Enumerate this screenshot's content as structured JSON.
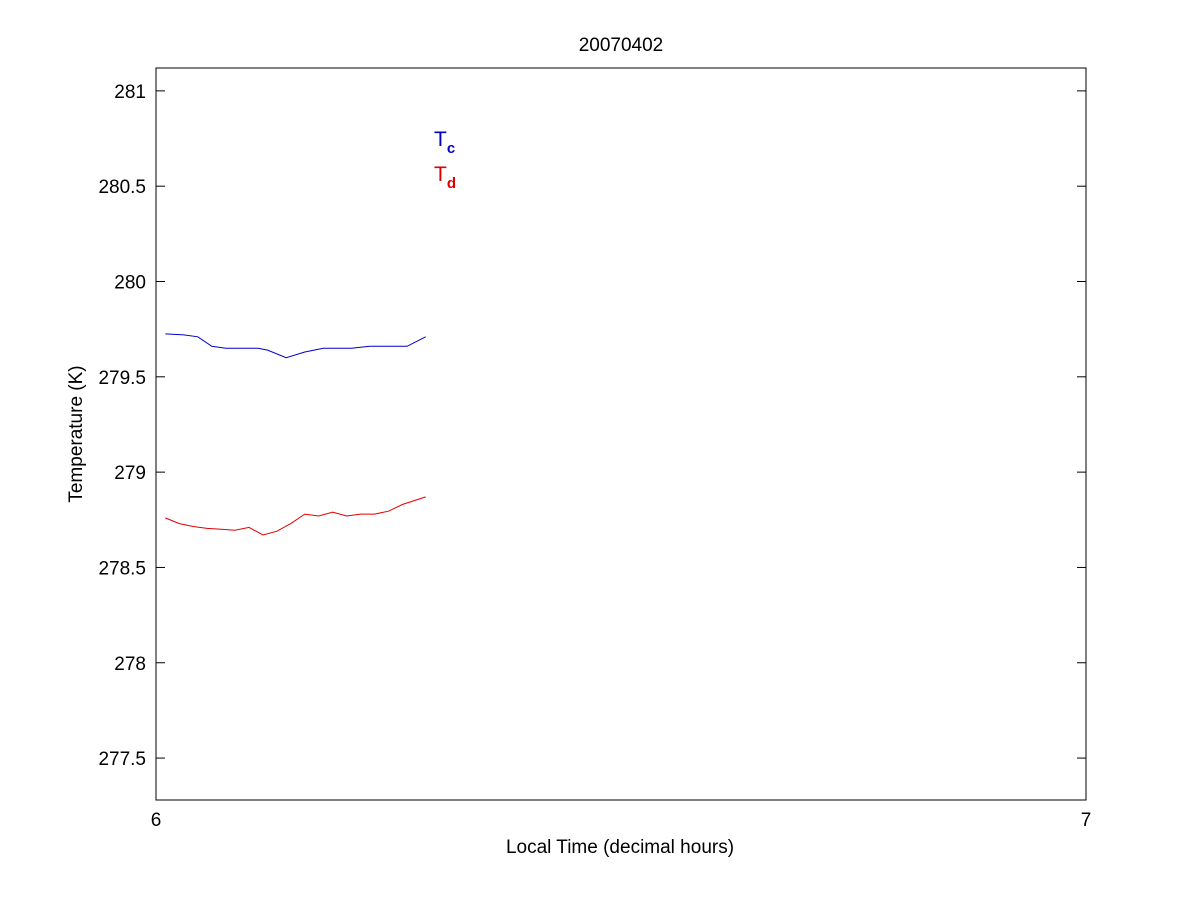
{
  "chart_data": {
    "type": "line",
    "title": "20070402",
    "xlabel": "Local Time (decimal hours)",
    "ylabel": "Temperature (K)",
    "xlim": [
      6,
      7
    ],
    "ylim": [
      277.28,
      281.12
    ],
    "x_ticks": [
      6,
      7
    ],
    "x_tick_labels": [
      "6",
      "7"
    ],
    "y_ticks": [
      277.5,
      278,
      278.5,
      279,
      279.5,
      280,
      280.5,
      281
    ],
    "y_tick_labels": [
      "277.5",
      "278",
      "278.5",
      "279",
      "279.5",
      "280",
      "280.5",
      "281"
    ],
    "grid": false,
    "legend": {
      "placement": "inside-top-left",
      "entries": [
        {
          "main": "T",
          "sub": "c",
          "color": "#0000c8"
        },
        {
          "main": "T",
          "sub": "d",
          "color": "#e00000"
        }
      ]
    },
    "series": [
      {
        "color": "#0000c8",
        "points": [
          [
            6.01,
            279.725
          ],
          [
            6.03,
            279.72
          ],
          [
            6.045,
            279.71
          ],
          [
            6.06,
            279.66
          ],
          [
            6.075,
            279.65
          ],
          [
            6.09,
            279.65
          ],
          [
            6.11,
            279.65
          ],
          [
            6.12,
            279.64
          ],
          [
            6.14,
            279.6
          ],
          [
            6.16,
            279.63
          ],
          [
            6.18,
            279.65
          ],
          [
            6.21,
            279.65
          ],
          [
            6.23,
            279.66
          ],
          [
            6.25,
            279.66
          ],
          [
            6.27,
            279.66
          ],
          [
            6.29,
            279.71
          ]
        ]
      },
      {
        "color": "#e00000",
        "points": [
          [
            6.01,
            278.76
          ],
          [
            6.025,
            278.73
          ],
          [
            6.04,
            278.715
          ],
          [
            6.055,
            278.705
          ],
          [
            6.07,
            278.7
          ],
          [
            6.085,
            278.695
          ],
          [
            6.1,
            278.71
          ],
          [
            6.115,
            278.67
          ],
          [
            6.13,
            278.69
          ],
          [
            6.145,
            278.73
          ],
          [
            6.16,
            278.78
          ],
          [
            6.175,
            278.77
          ],
          [
            6.19,
            278.79
          ],
          [
            6.205,
            278.77
          ],
          [
            6.22,
            278.78
          ],
          [
            6.235,
            278.78
          ],
          [
            6.25,
            278.795
          ],
          [
            6.265,
            278.83
          ],
          [
            6.29,
            278.87
          ]
        ]
      }
    ]
  }
}
